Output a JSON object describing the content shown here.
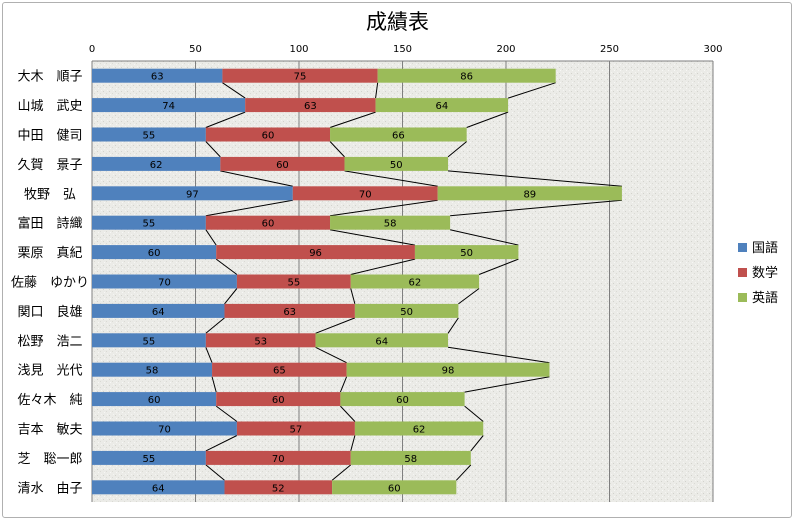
{
  "chart_data": {
    "type": "bar",
    "orientation": "horizontal",
    "stacked": true,
    "title": "成績表",
    "xlim": [
      0,
      300
    ],
    "xticks": [
      0,
      50,
      100,
      150,
      200,
      250,
      300
    ],
    "grid": true,
    "series_lines": true,
    "legend_position": "right",
    "categories": [
      "大木　順子",
      "山城　武史",
      "中田　健司",
      "久賀　景子",
      "牧野　弘",
      "富田　詩織",
      "栗原　真紀",
      "佐藤　ゆかり",
      "関口　良雄",
      "松野　浩二",
      "浅見　光代",
      "佐々木　純",
      "吉本　敏夫",
      "芝　聡一郎",
      "清水　由子"
    ],
    "series": [
      {
        "name": "国語",
        "color": "#4f81bd",
        "values": [
          63,
          74,
          55,
          62,
          97,
          55,
          60,
          70,
          64,
          55,
          58,
          60,
          70,
          55,
          64
        ]
      },
      {
        "name": "数学",
        "color": "#c0504d",
        "values": [
          75,
          63,
          60,
          60,
          70,
          60,
          96,
          55,
          63,
          53,
          65,
          60,
          57,
          70,
          52
        ]
      },
      {
        "name": "英語",
        "color": "#9bbb59",
        "values": [
          86,
          64,
          66,
          50,
          89,
          58,
          50,
          62,
          50,
          64,
          98,
          60,
          62,
          58,
          60
        ]
      }
    ]
  }
}
